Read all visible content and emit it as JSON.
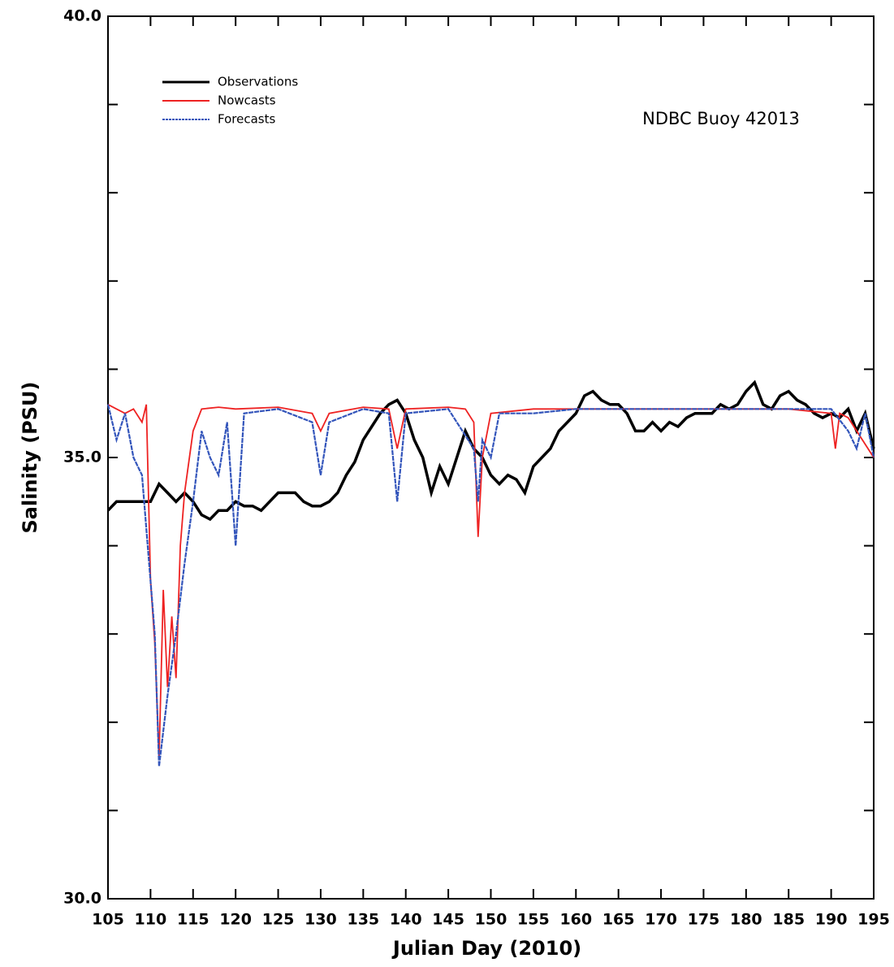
{
  "chart_data": {
    "type": "line",
    "annotation": "NDBC Buoy 42013",
    "x_label": "Julian Day (2010)",
    "y_label": "Salinity (PSU)",
    "xlim": [
      105,
      195
    ],
    "xticks": [
      105,
      110,
      115,
      120,
      125,
      130,
      135,
      140,
      145,
      150,
      155,
      160,
      165,
      170,
      175,
      180,
      185,
      190,
      195
    ],
    "ylim": [
      30,
      40
    ],
    "yticks": [
      {
        "value": 30,
        "label": "30.0"
      },
      {
        "value": 35,
        "label": "35.0"
      },
      {
        "value": 40,
        "label": "40.0"
      }
    ],
    "yticks_minor": [
      31,
      32,
      33,
      34,
      36,
      37,
      38,
      39
    ],
    "legend": "upper left",
    "series": [
      {
        "name": "Observations",
        "color": "#000000",
        "x": [
          105,
          106,
          107,
          108,
          109,
          110,
          111,
          112,
          113,
          114,
          115,
          116,
          117,
          118,
          119,
          120,
          121,
          122,
          123,
          124,
          125,
          126,
          127,
          128,
          129,
          130,
          131,
          132,
          133,
          134,
          135,
          136,
          137,
          138,
          139,
          140,
          141,
          142,
          143,
          144,
          145,
          146,
          147,
          148,
          149,
          150,
          151,
          152,
          153,
          154,
          155,
          156,
          157,
          158,
          159,
          160,
          161,
          162,
          163,
          164,
          165,
          166,
          167,
          168,
          169,
          170,
          171,
          172,
          173,
          174,
          175,
          176,
          177,
          178,
          179,
          180,
          181,
          182,
          183,
          184,
          185,
          186,
          187,
          188,
          189,
          190,
          191,
          192,
          193,
          194,
          195
        ],
        "values": [
          34.4,
          34.5,
          34.5,
          34.5,
          34.5,
          34.5,
          34.7,
          34.6,
          34.5,
          34.6,
          34.5,
          34.35,
          34.3,
          34.4,
          34.4,
          34.5,
          34.45,
          34.45,
          34.4,
          34.5,
          34.6,
          34.6,
          34.6,
          34.5,
          34.45,
          34.45,
          34.5,
          34.6,
          34.8,
          34.95,
          35.2,
          35.35,
          35.5,
          35.6,
          35.65,
          35.5,
          35.2,
          35.0,
          34.6,
          34.9,
          34.7,
          35.0,
          35.3,
          35.1,
          35.0,
          34.8,
          34.7,
          34.8,
          34.75,
          34.6,
          34.9,
          35.0,
          35.1,
          35.3,
          35.4,
          35.5,
          35.7,
          35.75,
          35.65,
          35.6,
          35.6,
          35.5,
          35.3,
          35.3,
          35.4,
          35.3,
          35.4,
          35.35,
          35.45,
          35.5,
          35.5,
          35.5,
          35.6,
          35.55,
          35.6,
          35.75,
          35.85,
          35.6,
          35.55,
          35.7,
          35.75,
          35.65,
          35.6,
          35.5,
          35.45,
          35.5,
          35.45,
          35.55,
          35.3,
          35.5,
          35.1
        ]
      },
      {
        "name": "Nowcasts",
        "color": "#ee2222",
        "x": [
          105,
          106,
          107,
          108,
          109,
          109.5,
          110,
          110.5,
          111,
          111.5,
          112,
          112.5,
          113,
          113.5,
          114,
          115,
          116,
          118,
          120,
          125,
          129,
          130,
          131,
          135,
          138,
          139,
          140,
          145,
          147,
          148,
          148.5,
          149,
          150,
          155,
          160,
          170,
          180,
          185,
          190,
          190.5,
          191,
          192,
          195
        ],
        "values": [
          35.6,
          35.55,
          35.5,
          35.55,
          35.4,
          35.6,
          33.6,
          32.9,
          31.6,
          33.5,
          32.4,
          33.2,
          32.5,
          34.0,
          34.6,
          35.3,
          35.55,
          35.57,
          35.55,
          35.57,
          35.5,
          35.3,
          35.5,
          35.57,
          35.55,
          35.1,
          35.55,
          35.57,
          35.55,
          35.4,
          34.1,
          35.0,
          35.5,
          35.55,
          35.55,
          35.55,
          35.55,
          35.55,
          35.5,
          35.1,
          35.5,
          35.45,
          35.0
        ]
      },
      {
        "name": "Forecasts",
        "color": "#3355bb",
        "x": [
          105,
          106,
          107,
          108,
          109,
          110,
          110.5,
          111,
          112,
          113,
          114,
          115,
          116,
          117,
          118,
          119,
          120,
          121,
          125,
          129,
          130,
          131,
          135,
          138,
          139,
          140,
          145,
          148,
          148.5,
          149,
          150,
          151,
          155,
          160,
          165,
          170,
          180,
          190,
          192,
          193,
          194,
          195
        ],
        "values": [
          35.6,
          35.2,
          35.5,
          35.0,
          34.8,
          33.6,
          33.0,
          31.5,
          32.3,
          33.0,
          33.8,
          34.5,
          35.3,
          35.0,
          34.8,
          35.4,
          34.0,
          35.5,
          35.55,
          35.4,
          34.8,
          35.4,
          35.55,
          35.5,
          34.5,
          35.5,
          35.55,
          35.1,
          34.5,
          35.2,
          35.0,
          35.5,
          35.5,
          35.55,
          35.55,
          35.55,
          35.55,
          35.55,
          35.3,
          35.1,
          35.5,
          35.0
        ]
      }
    ]
  }
}
